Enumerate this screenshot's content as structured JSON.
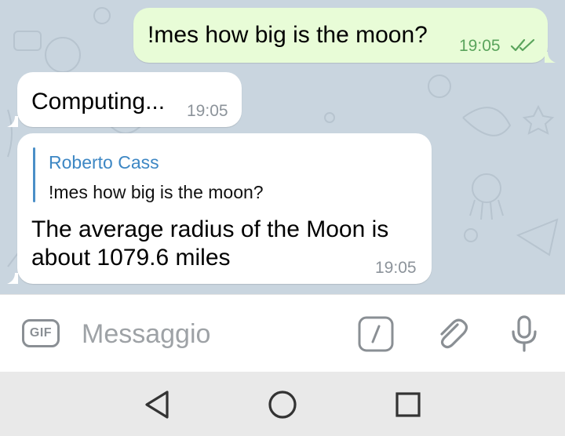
{
  "messages": [
    {
      "direction": "outgoing",
      "text": "!mes how big is the moon?",
      "time": "19:05",
      "status_icon": "double-check-icon"
    },
    {
      "direction": "incoming",
      "text": "Computing...",
      "time": "19:05"
    },
    {
      "direction": "incoming",
      "reply_to": {
        "name": "Roberto Cass",
        "text": "!mes how big is the moon?"
      },
      "lines": [
        "The average radius of the Moon is",
        "about 1079.6 miles"
      ],
      "time": "19:05"
    }
  ],
  "composer": {
    "gif_label": "GIF",
    "placeholder": "Messaggio",
    "icons": [
      "gif-icon",
      "slash-command-icon",
      "paperclip-icon",
      "microphone-icon"
    ]
  },
  "navbar": {
    "icons": [
      "back-triangle-icon",
      "home-circle-icon",
      "recents-square-icon"
    ]
  },
  "colors": {
    "chat_background": "#c9d5df",
    "outgoing_bubble": "#e8fcd7",
    "incoming_bubble": "#ffffff",
    "outgoing_time": "#5aa45c",
    "reply_accent": "#3d87c4"
  }
}
